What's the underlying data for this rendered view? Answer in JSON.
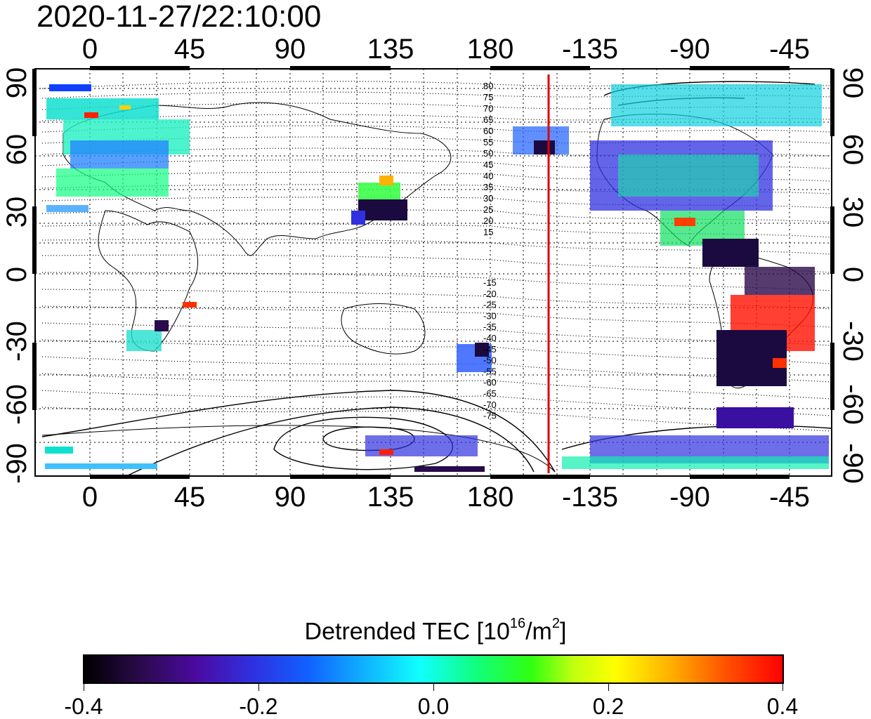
{
  "timestamp": "2020-11-27/22:10:00",
  "map": {
    "top_lon_ticks": [
      "0",
      "45",
      "90",
      "135",
      "180",
      "-135",
      "-90",
      "-45"
    ],
    "bottom_lon_ticks": [
      "0",
      "45",
      "90",
      "135",
      "180",
      "-135",
      "-90",
      "-45"
    ],
    "left_lat_ticks": [
      "90",
      "60",
      "30",
      "0",
      "-30",
      "-60",
      "-90"
    ],
    "right_lat_ticks": [
      "90",
      "60",
      "30",
      "0",
      "-30",
      "-60",
      "-90"
    ],
    "contour_labels_north": [
      "80",
      "75",
      "70",
      "65",
      "60",
      "55",
      "50",
      "45",
      "40",
      "35",
      "30",
      "25",
      "20",
      "15"
    ],
    "contour_labels_south": [
      "-15",
      "-20",
      "-25",
      "-30",
      "-35",
      "-40",
      "-45",
      "-50",
      "-55",
      "-60",
      "-65",
      "-70",
      "-75"
    ],
    "marker_line_color": "#dd0000",
    "marker_line_lon": -155
  },
  "colorbar": {
    "title_text": "Detrended TEC  [10",
    "title_sup1": "16",
    "title_mid": "/m",
    "title_sup2": "2",
    "title_end": "]",
    "labels": [
      "-0.4",
      "-0.2",
      "0.0",
      "0.2",
      "0.4"
    ],
    "range": [
      -0.4,
      0.4
    ]
  }
}
